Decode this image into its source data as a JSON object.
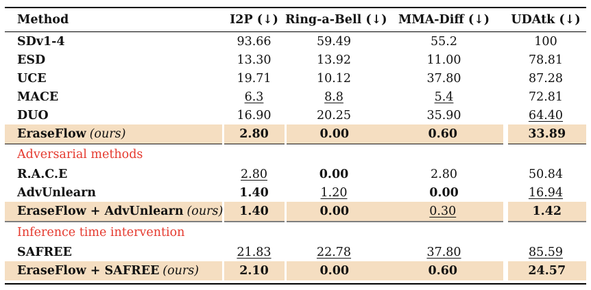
{
  "colors": {
    "highlight_row_bg": "#F5DEC1",
    "section_label_red": "#E5392E",
    "text": "#121212",
    "rule_black": "#000000",
    "rule_gray": "#7E7E7E"
  },
  "table": {
    "columns": [
      {
        "label": "Method"
      },
      {
        "label": "I2P (↓)"
      },
      {
        "label": "Ring-a-Bell (↓)"
      },
      {
        "label": "MMA-Diff (↓)"
      },
      {
        "label": "UDAtk (↓)"
      }
    ],
    "rows": [
      {
        "type": "data",
        "method": "SDv1-4",
        "suffix": "",
        "values": [
          {
            "text": "93.66"
          },
          {
            "text": "59.49"
          },
          {
            "text": "55.2"
          },
          {
            "text": "100"
          }
        ]
      },
      {
        "type": "data",
        "method": "ESD",
        "suffix": "",
        "values": [
          {
            "text": "13.30"
          },
          {
            "text": "13.92"
          },
          {
            "text": "11.00"
          },
          {
            "text": "78.81"
          }
        ]
      },
      {
        "type": "data",
        "method": "UCE",
        "suffix": "",
        "values": [
          {
            "text": "19.71"
          },
          {
            "text": "10.12"
          },
          {
            "text": "37.80"
          },
          {
            "text": "87.28"
          }
        ]
      },
      {
        "type": "data",
        "method": "MACE",
        "suffix": "",
        "values": [
          {
            "text": "6.3",
            "underline": true
          },
          {
            "text": "8.8",
            "underline": true
          },
          {
            "text": "5.4",
            "underline": true
          },
          {
            "text": "72.81"
          }
        ]
      },
      {
        "type": "data",
        "method": "DUO",
        "suffix": "",
        "values": [
          {
            "text": "16.90"
          },
          {
            "text": "20.25"
          },
          {
            "text": "35.90"
          },
          {
            "text": "64.40",
            "underline": true
          }
        ]
      },
      {
        "type": "data",
        "method": "EraseFlow",
        "suffix": "(ours)",
        "highlight": true,
        "values": [
          {
            "text": "2.80",
            "bold": true
          },
          {
            "text": "0.00",
            "bold": true
          },
          {
            "text": "0.60",
            "bold": true
          },
          {
            "text": "33.89",
            "bold": true
          }
        ]
      },
      {
        "type": "section",
        "label": "Adversarial methods",
        "divider": "dark"
      },
      {
        "type": "data",
        "method": "R.A.C.E",
        "suffix": "",
        "values": [
          {
            "text": "2.80",
            "underline": true
          },
          {
            "text": "0.00",
            "bold": true
          },
          {
            "text": "2.80"
          },
          {
            "text": "50.84"
          }
        ]
      },
      {
        "type": "data",
        "method": "AdvUnlearn",
        "suffix": "",
        "values": [
          {
            "text": "1.40",
            "bold": true
          },
          {
            "text": "1.20",
            "underline": true
          },
          {
            "text": "0.00",
            "bold": true
          },
          {
            "text": "16.94",
            "underline": true
          }
        ]
      },
      {
        "type": "data",
        "method": "EraseFlow + AdvUnlearn",
        "suffix": "(ours)",
        "highlight": true,
        "values": [
          {
            "text": "1.40",
            "bold": true
          },
          {
            "text": "0.00",
            "bold": true
          },
          {
            "text": "0.30",
            "underline": true
          },
          {
            "text": "1.42",
            "bold": true
          }
        ]
      },
      {
        "type": "section",
        "label": "Inference time intervention",
        "divider": "gray"
      },
      {
        "type": "data",
        "method": "SAFREE",
        "suffix": "",
        "values": [
          {
            "text": "21.83",
            "underline": true
          },
          {
            "text": "22.78",
            "underline": true
          },
          {
            "text": "37.80",
            "underline": true
          },
          {
            "text": "85.59",
            "underline": true
          }
        ]
      },
      {
        "type": "data",
        "method": "EraseFlow + SAFREE",
        "suffix": "(ours)",
        "highlight": true,
        "values": [
          {
            "text": "2.10",
            "bold": true
          },
          {
            "text": "0.00",
            "bold": true
          },
          {
            "text": "0.60",
            "bold": true
          },
          {
            "text": "24.57",
            "bold": true
          }
        ]
      }
    ]
  }
}
